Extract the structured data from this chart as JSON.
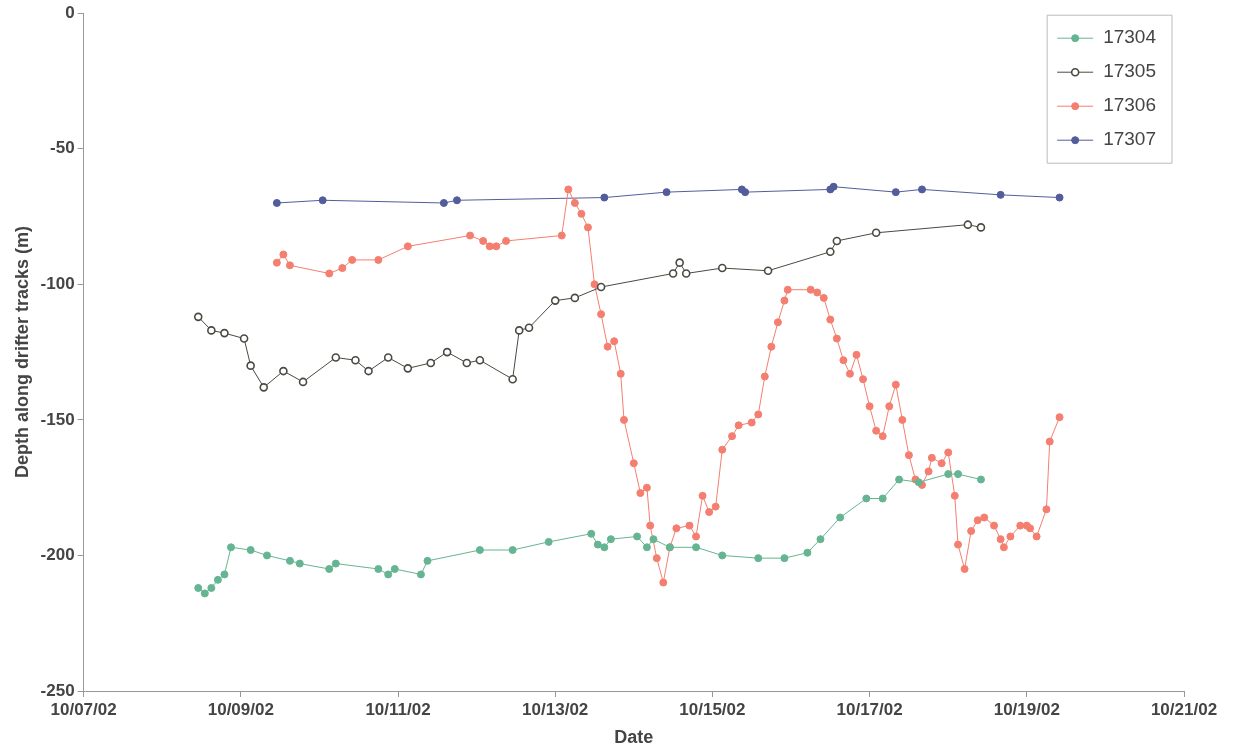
{
  "chart_data": {
    "type": "line",
    "xlabel": "Date",
    "ylabel": "Depth along drifter tracks (m)",
    "xlim": [
      "--10-07",
      "--10-21"
    ],
    "xticks": [
      {
        "value": "--10-07",
        "label": "10/07/02"
      },
      {
        "value": "--10-09",
        "label": "10/09/02"
      },
      {
        "value": "--10-11",
        "label": "10/11/02"
      },
      {
        "value": "--10-13",
        "label": "10/13/02"
      },
      {
        "value": "--10-15",
        "label": "10/15/02"
      },
      {
        "value": "--10-17",
        "label": "10/17/02"
      },
      {
        "value": "--10-19",
        "label": "10/19/02"
      },
      {
        "value": "--10-21",
        "label": "10/21/02"
      }
    ],
    "ylim": [
      -250,
      0
    ],
    "yticks": [
      -250,
      -200,
      -150,
      -100,
      -50,
      0
    ],
    "grid": false,
    "legend": "top right",
    "marker": "circle",
    "line_style": "solid",
    "series": [
      {
        "name": "17304",
        "color": "#66b592",
        "x": [
          "--10-08T11:00",
          "--10-08T13:00",
          "--10-08T15:00",
          "--10-08T17:00",
          "--10-08T19:00",
          "--10-08T21:00",
          "--10-09T03:00",
          "--10-09T08:00",
          "--10-09T15:00",
          "--10-09T18:00",
          "--10-10T03:00",
          "--10-10T05:00",
          "--10-10T18:00",
          "--10-10T21:00",
          "--10-10T23:00",
          "--10-11T07:00",
          "--10-11T09:00",
          "--10-12T01:00",
          "--10-12T11:00",
          "--10-12T22:00",
          "--10-13T11:00",
          "--10-13T13:00",
          "--10-13T15:00",
          "--10-13T17:00",
          "--10-14T01:00",
          "--10-14T04:00",
          "--10-14T06:00",
          "--10-14T11:00",
          "--10-14T19:00",
          "--10-15T03:00",
          "--10-15T14:00",
          "--10-15T22:00",
          "--10-16T05:00",
          "--10-16T09:00",
          "--10-16T15:00",
          "--10-16T23:00",
          "--10-17T04:00",
          "--10-17T09:00",
          "--10-17T15:00",
          "--10-18T00:00",
          "--10-18T03:00",
          "--10-18T10:00"
        ],
        "values": [
          -212,
          -214,
          -212,
          -209,
          -207,
          -197,
          -198,
          -200,
          -202,
          -203,
          -205,
          -203,
          -205,
          -207,
          -205,
          -207,
          -202,
          -198,
          -198,
          -195,
          -192,
          -196,
          -197,
          -194,
          -193,
          -197,
          -194,
          -197,
          -197,
          -200,
          -201,
          -201,
          -199,
          -194,
          -186,
          -179,
          -179,
          -172,
          -173,
          -170,
          -170,
          -172
        ]
      },
      {
        "name": "17305",
        "color": "#4a4a42",
        "x": [
          "--10-08T11:00",
          "--10-08T15:00",
          "--10-08T19:00",
          "--10-09T01:00",
          "--10-09T03:00",
          "--10-09T07:00",
          "--10-09T13:00",
          "--10-09T19:00",
          "--10-10T05:00",
          "--10-10T11:00",
          "--10-10T15:00",
          "--10-10T21:00",
          "--10-11T03:00",
          "--10-11T10:00",
          "--10-11T15:00",
          "--10-11T21:00",
          "--10-12T01:00",
          "--10-12T11:00",
          "--10-12T13:00",
          "--10-12T16:00",
          "--10-13T00:00",
          "--10-13T06:00",
          "--10-13T14:00",
          "--10-14T12:00",
          "--10-14T14:00",
          "--10-14T16:00",
          "--10-15T03:00",
          "--10-15T17:00",
          "--10-16T12:00",
          "--10-16T14:00",
          "--10-17T02:00",
          "--10-18T06:00",
          "--10-18T10:00"
        ],
        "values": [
          -112,
          -117,
          -118,
          -120,
          -130,
          -138,
          -132,
          -136,
          -127,
          -128,
          -132,
          -127,
          -131,
          -129,
          -125,
          -129,
          -128,
          -135,
          -117,
          -116,
          -106,
          -105,
          -101,
          -96,
          -92,
          -96,
          -94,
          -95,
          -88,
          -84,
          -81,
          -78,
          -79
        ]
      },
      {
        "name": "17306",
        "color": "#f47f70",
        "x": [
          "--10-09T11:00",
          "--10-09T13:00",
          "--10-09T15:00",
          "--10-10T03:00",
          "--10-10T07:00",
          "--10-10T10:00",
          "--10-10T18:00",
          "--10-11T03:00",
          "--10-11T22:00",
          "--10-12T02:00",
          "--10-12T04:00",
          "--10-12T06:00",
          "--10-12T09:00",
          "--10-13T02:00",
          "--10-13T04:00",
          "--10-13T06:00",
          "--10-13T08:00",
          "--10-13T10:00",
          "--10-13T12:00",
          "--10-13T14:00",
          "--10-13T16:00",
          "--10-13T18:00",
          "--10-13T20:00",
          "--10-13T21:00",
          "--10-14T00:00",
          "--10-14T02:00",
          "--10-14T04:00",
          "--10-14T05:00",
          "--10-14T07:00",
          "--10-14T09:00",
          "--10-14T11:00",
          "--10-14T13:00",
          "--10-14T17:00",
          "--10-14T19:00",
          "--10-14T21:00",
          "--10-14T23:00",
          "--10-15T01:00",
          "--10-15T03:00",
          "--10-15T06:00",
          "--10-15T08:00",
          "--10-15T12:00",
          "--10-15T14:00",
          "--10-15T16:00",
          "--10-15T18:00",
          "--10-15T20:00",
          "--10-15T22:00",
          "--10-15T23:00",
          "--10-16T06:00",
          "--10-16T08:00",
          "--10-16T10:00",
          "--10-16T12:00",
          "--10-16T14:00",
          "--10-16T16:00",
          "--10-16T18:00",
          "--10-16T20:00",
          "--10-16T22:00",
          "--10-17T00:00",
          "--10-17T02:00",
          "--10-17T04:00",
          "--10-17T06:00",
          "--10-17T08:00",
          "--10-17T10:00",
          "--10-17T12:00",
          "--10-17T14:00",
          "--10-17T16:00",
          "--10-17T18:00",
          "--10-17T19:00",
          "--10-17T22:00",
          "--10-18T00:00",
          "--10-18T02:00",
          "--10-18T03:00",
          "--10-18T05:00",
          "--10-18T07:00",
          "--10-18T09:00",
          "--10-18T11:00",
          "--10-18T14:00",
          "--10-18T16:00",
          "--10-18T17:00",
          "--10-18T19:00",
          "--10-18T22:00",
          "--10-19T00:00",
          "--10-19T01:00",
          "--10-19T03:00",
          "--10-19T06:00",
          "--10-19T07:00",
          "--10-19T10:00"
        ],
        "values": [
          -92,
          -89,
          -93,
          -96,
          -94,
          -91,
          -91,
          -86,
          -82,
          -84,
          -86,
          -86,
          -84,
          -82,
          -65,
          -70,
          -74,
          -79,
          -100,
          -111,
          -123,
          -121,
          -133,
          -150,
          -166,
          -177,
          -175,
          -189,
          -201,
          -210,
          -197,
          -190,
          -189,
          -193,
          -178,
          -184,
          -182,
          -161,
          -156,
          -152,
          -151,
          -148,
          -134,
          -123,
          -114,
          -106,
          -102,
          -102,
          -103,
          -105,
          -113,
          -120,
          -128,
          -133,
          -126,
          -135,
          -145,
          -154,
          -156,
          -145,
          -137,
          -150,
          -163,
          -172,
          -174,
          -169,
          -164,
          -166,
          -162,
          -178,
          -196,
          -205,
          -191,
          -187,
          -186,
          -189,
          -194,
          -197,
          -193,
          -189,
          -189,
          -190,
          -193,
          -183,
          -158,
          -149
        ]
      },
      {
        "name": "17307",
        "color": "#535d9c",
        "x": [
          "--10-09T11:00",
          "--10-10T01:00",
          "--10-11T14:00",
          "--10-11T18:00",
          "--10-13T15:00",
          "--10-14T10:00",
          "--10-15T09:00",
          "--10-15T10:00",
          "--10-16T12:00",
          "--10-16T13:00",
          "--10-17T08:00",
          "--10-17T16:00",
          "--10-18T16:00",
          "--10-19T10:00"
        ],
        "values": [
          -70,
          -69,
          -70,
          -69,
          -68,
          -66,
          -65,
          -66,
          -65,
          -64,
          -66,
          -65,
          -67,
          -68
        ]
      }
    ]
  }
}
